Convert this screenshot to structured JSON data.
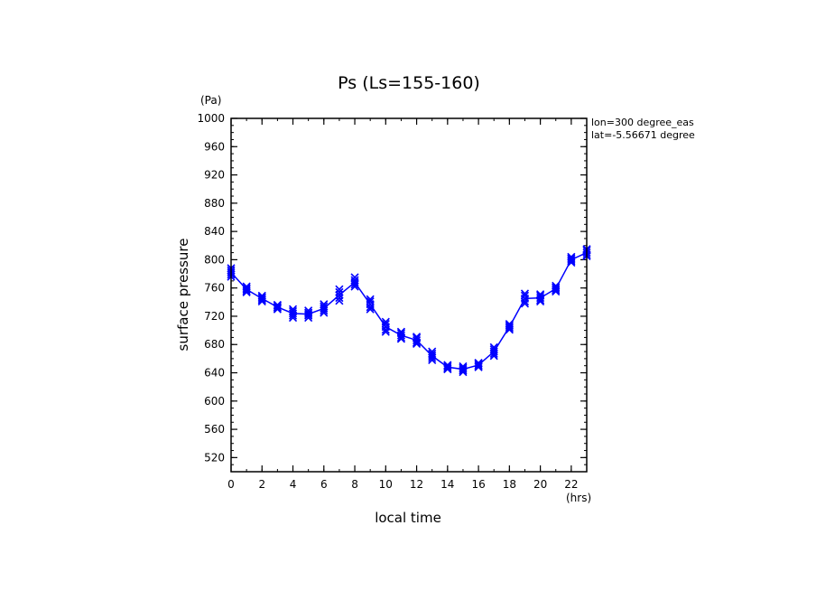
{
  "chart_data": {
    "type": "line",
    "title": "Ps (Ls=155-160)",
    "xlabel": "local time",
    "ylabel": "surface pressure",
    "x_unit": "(hrs)",
    "y_unit": "(Pa)",
    "xlim": [
      0,
      23
    ],
    "ylim": [
      500,
      1000
    ],
    "x_ticks": [
      0,
      2,
      4,
      6,
      8,
      10,
      12,
      14,
      16,
      18,
      20,
      22
    ],
    "y_ticks": [
      520,
      560,
      600,
      640,
      680,
      720,
      760,
      800,
      840,
      880,
      920,
      960,
      1000
    ],
    "annotations": [
      "lon=300 degree_eas",
      "lat=-5.56671 degree"
    ],
    "grid": false,
    "color": "#0000ff",
    "x": [
      0,
      1,
      2,
      3,
      4,
      5,
      6,
      7,
      8,
      9,
      10,
      11,
      12,
      13,
      14,
      15,
      16,
      17,
      18,
      19,
      20,
      21,
      22,
      23
    ],
    "mean": [
      782,
      758,
      745,
      733,
      724,
      723,
      731,
      750,
      768,
      737,
      705,
      693,
      686,
      664,
      648,
      645,
      651,
      670,
      705,
      745,
      746,
      759,
      800,
      810
    ],
    "samples": [
      [
        776,
        779,
        782,
        785,
        788
      ],
      [
        754,
        756,
        758,
        760,
        762
      ],
      [
        741,
        743,
        745,
        747,
        749
      ],
      [
        730,
        732,
        733,
        735,
        736
      ],
      [
        718,
        721,
        724,
        727,
        730
      ],
      [
        718,
        721,
        723,
        725,
        728
      ],
      [
        725,
        728,
        731,
        734,
        737
      ],
      [
        742,
        746,
        750,
        754,
        758
      ],
      [
        762,
        765,
        768,
        771,
        775
      ],
      [
        730,
        733,
        737,
        741,
        744
      ],
      [
        698,
        701,
        705,
        709,
        712
      ],
      [
        688,
        690,
        693,
        696,
        698
      ],
      [
        681,
        683,
        686,
        689,
        691
      ],
      [
        658,
        661,
        664,
        667,
        670
      ],
      [
        645,
        646,
        648,
        650,
        651
      ],
      [
        641,
        643,
        645,
        647,
        649
      ],
      [
        648,
        649,
        651,
        653,
        654
      ],
      [
        664,
        667,
        670,
        673,
        676
      ],
      [
        701,
        703,
        705,
        707,
        709
      ],
      [
        738,
        741,
        745,
        749,
        752
      ],
      [
        741,
        743,
        746,
        749,
        751
      ],
      [
        755,
        757,
        759,
        761,
        763
      ],
      [
        796,
        798,
        800,
        802,
        804
      ],
      [
        805,
        807,
        810,
        813,
        815
      ]
    ]
  }
}
